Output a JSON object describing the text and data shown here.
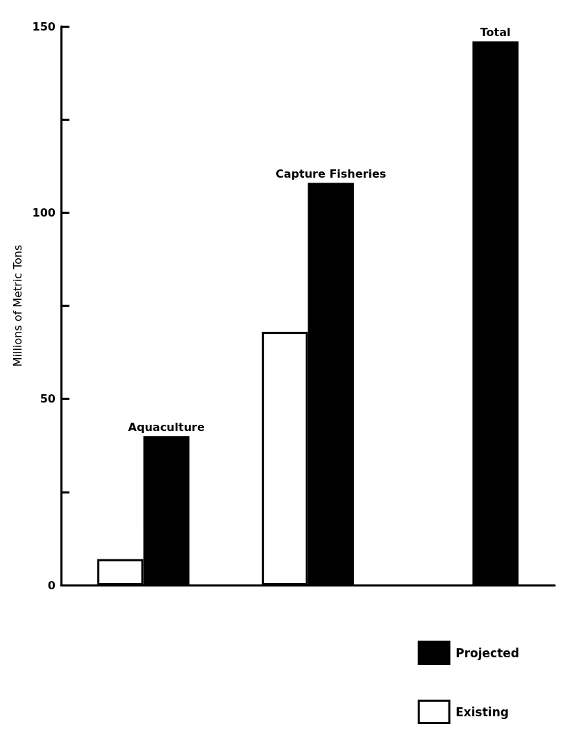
{
  "chart_data": {
    "type": "bar",
    "ylabel": "Millions of Metric Tons",
    "categories": [
      "Aquaculture",
      "Capture Fisheries",
      "Total"
    ],
    "series": [
      {
        "name": "Existing",
        "color": "#ffffff",
        "values": [
          7,
          68,
          null
        ]
      },
      {
        "name": "Projected",
        "color": "#000000",
        "values": [
          40,
          108,
          146
        ]
      }
    ],
    "ylim": [
      0,
      150
    ],
    "yticks": [
      0,
      {
        "value": 25,
        "label": null
      },
      50,
      {
        "value": 75,
        "label": null
      },
      100,
      {
        "value": 125,
        "label": null
      },
      150
    ],
    "grid": false,
    "legend": "bottom right",
    "tick_labels": "y"
  }
}
